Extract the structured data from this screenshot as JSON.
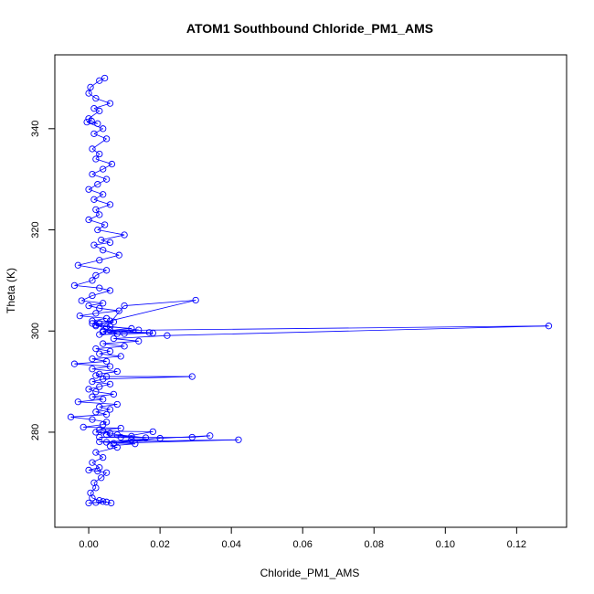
{
  "colors": {
    "series": "#0000ff",
    "axis": "#000000",
    "background": "#ffffff"
  },
  "chart_data": {
    "type": "line",
    "title": "ATOM1 Southbound Chloride_PM1_AMS",
    "xlabel": "Chloride_PM1_AMS",
    "ylabel": "Theta (K)",
    "xlim": [
      -0.0095,
      0.134
    ],
    "ylim": [
      261.2,
      354.6
    ],
    "xticks": [
      0.0,
      0.02,
      0.04,
      0.06,
      0.08,
      0.1,
      0.12
    ],
    "xtick_labels": [
      "0.00",
      "0.02",
      "0.04",
      "0.06",
      "0.08",
      "0.10",
      "0.12"
    ],
    "yticks": [
      280,
      300,
      320,
      340
    ],
    "ytick_labels": [
      "280",
      "300",
      "320",
      "340"
    ],
    "grid": false,
    "legend": "none",
    "markers": "open-circle",
    "series": [
      {
        "x": [
          0.0045,
          0.003,
          0.0005,
          0.0,
          0.002,
          0.006,
          0.0015,
          0.003,
          0.0,
          0.0008,
          0.0025,
          -0.0005,
          0.004,
          0.0015,
          0.005,
          0.001,
          0.003,
          0.002,
          0.0065,
          0.004,
          0.001,
          0.005,
          0.0025,
          0.0,
          0.004,
          0.0015,
          0.006,
          0.002,
          0.003,
          0.0,
          0.0045,
          0.0025,
          0.01,
          0.0035,
          0.006,
          0.0015,
          0.004,
          0.0085,
          0.003,
          -0.003,
          0.005,
          0.002,
          0.001,
          -0.004,
          0.003,
          0.006,
          0.001,
          -0.002,
          0.004,
          0.0,
          0.003,
          0.0085,
          0.002,
          -0.0025,
          0.005,
          0.001,
          0.007,
          0.003,
          0.002,
          0.005,
          0.01,
          0.03,
          0.006,
          0.002,
          0.012,
          0.004,
          0.008,
          0.001,
          0.006,
          0.014,
          0.004,
          0.017,
          0.01,
          0.003,
          0.018,
          0.006,
          0.129,
          0.022,
          0.007,
          0.014,
          0.004,
          0.01,
          0.002,
          0.006,
          0.003,
          0.009,
          0.001,
          0.005,
          -0.004,
          0.006,
          0.001,
          0.008,
          0.003,
          0.002,
          0.005,
          0.029,
          0.004,
          0.001,
          0.006,
          0.003,
          0.0,
          0.002,
          0.007,
          0.001,
          0.004,
          -0.003,
          0.008,
          0.003,
          0.006,
          0.002,
          0.005,
          -0.005,
          0.001,
          0.005,
          0.004,
          -0.0015,
          0.009,
          0.003,
          0.002,
          0.006,
          0.005,
          0.012,
          0.003,
          0.016,
          0.008,
          0.004,
          0.018,
          0.009,
          0.029,
          0.034,
          0.012,
          0.005,
          0.02,
          0.007,
          0.042,
          0.003,
          0.013,
          0.006,
          0.008,
          0.002,
          0.004,
          0.001,
          0.003,
          0.0,
          0.0025,
          0.005,
          0.0035,
          0.0015,
          0.002,
          0.0005,
          0.001,
          0.003,
          0.005,
          0.0,
          0.002,
          0.004,
          0.0063
        ],
        "y": [
          350.0,
          349.5,
          348.2,
          347.0,
          346.0,
          345.0,
          344.0,
          343.5,
          342.0,
          341.5,
          341.0,
          341.3,
          340.0,
          339.0,
          338.0,
          336.0,
          335.0,
          334.0,
          333.0,
          332.0,
          331.0,
          330.0,
          329.0,
          328.0,
          327.0,
          326.0,
          325.0,
          324.0,
          323.0,
          322.0,
          321.0,
          320.0,
          319.0,
          318.0,
          317.5,
          317.0,
          316.0,
          315.0,
          314.0,
          313.0,
          312.0,
          311.0,
          310.0,
          309.0,
          308.5,
          308.0,
          307.0,
          306.0,
          305.5,
          305.0,
          304.5,
          304.0,
          303.5,
          303.0,
          302.5,
          302.0,
          301.8,
          301.5,
          301.2,
          300.8,
          305.0,
          306.1,
          302.0,
          301.0,
          300.5,
          300.0,
          299.5,
          301.5,
          300.9,
          300.2,
          299.8,
          299.7,
          299.5,
          299.3,
          299.6,
          300.1,
          301.0,
          299.1,
          298.5,
          298.0,
          297.5,
          297.0,
          296.5,
          296.0,
          295.5,
          295.0,
          294.5,
          294.0,
          293.5,
          293.0,
          292.5,
          292.0,
          291.5,
          291.2,
          291.0,
          291.0,
          290.5,
          290.0,
          289.5,
          289.0,
          288.5,
          288.0,
          287.5,
          287.0,
          286.5,
          286.0,
          285.5,
          285.0,
          284.5,
          284.0,
          283.5,
          283.0,
          282.5,
          282.0,
          281.5,
          281.0,
          280.8,
          280.5,
          280.0,
          279.8,
          279.5,
          279.2,
          279.0,
          278.9,
          279.5,
          280.2,
          280.1,
          279.0,
          279.0,
          279.3,
          278.5,
          278.0,
          278.8,
          277.8,
          278.5,
          278.1,
          277.7,
          277.3,
          277.0,
          276.0,
          275.0,
          274.0,
          273.0,
          272.5,
          272.3,
          272.0,
          271.0,
          270.0,
          269.0,
          268.0,
          267.0,
          266.5,
          266.2,
          266.0,
          266.1,
          266.3,
          266.0
        ]
      }
    ]
  }
}
